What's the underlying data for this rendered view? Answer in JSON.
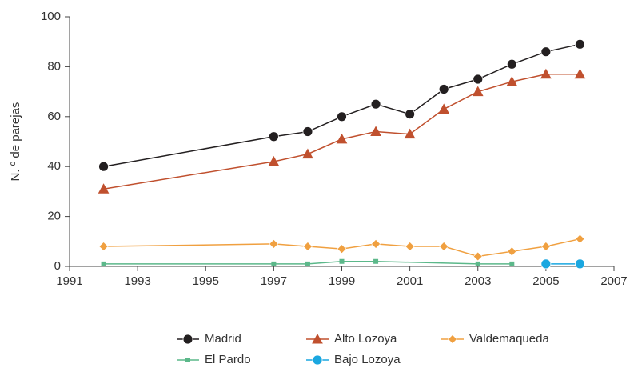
{
  "chart_data": {
    "type": "line",
    "y_label": "N. º de parejas",
    "xlim": [
      1991,
      2007
    ],
    "xticks": [
      1991,
      1993,
      1995,
      1997,
      1999,
      2001,
      2003,
      2005,
      2007
    ],
    "ylim": [
      0,
      100
    ],
    "yticks": [
      0,
      20,
      40,
      60,
      80,
      100
    ],
    "grid": false,
    "legend": "bottom",
    "series": [
      {
        "name": "Madrid",
        "color": "#231f20",
        "marker": "circle",
        "x": [
          1992,
          1997,
          1998,
          1999,
          2000,
          2001,
          2002,
          2003,
          2004,
          2005,
          2006
        ],
        "values": [
          40,
          52,
          54,
          60,
          65,
          61,
          71,
          75,
          81,
          86,
          89
        ]
      },
      {
        "name": "Alto Lozoya",
        "color": "#c0502e",
        "marker": "triangle",
        "x": [
          1992,
          1997,
          1998,
          1999,
          2000,
          2001,
          2002,
          2003,
          2004,
          2005,
          2006
        ],
        "values": [
          31,
          42,
          45,
          51,
          54,
          53,
          63,
          70,
          74,
          77,
          77
        ]
      },
      {
        "name": "Valdemaqueda",
        "color": "#f0a040",
        "marker": "diamond",
        "x": [
          1992,
          1997,
          1998,
          1999,
          2000,
          2001,
          2002,
          2003,
          2004,
          2005,
          2006
        ],
        "values": [
          8,
          9,
          8,
          7,
          9,
          8,
          8,
          4,
          6,
          8,
          11
        ]
      },
      {
        "name": "El Pardo",
        "color": "#5cb88a",
        "marker": "square",
        "x": [
          1992,
          1997,
          1998,
          1999,
          2000,
          2003,
          2004
        ],
        "values": [
          1,
          1,
          1,
          2,
          2,
          1,
          1
        ]
      },
      {
        "name": "Bajo Lozoya",
        "color": "#1aa7e0",
        "marker": "circle",
        "x": [
          2005,
          2006
        ],
        "values": [
          1,
          1
        ]
      }
    ]
  }
}
